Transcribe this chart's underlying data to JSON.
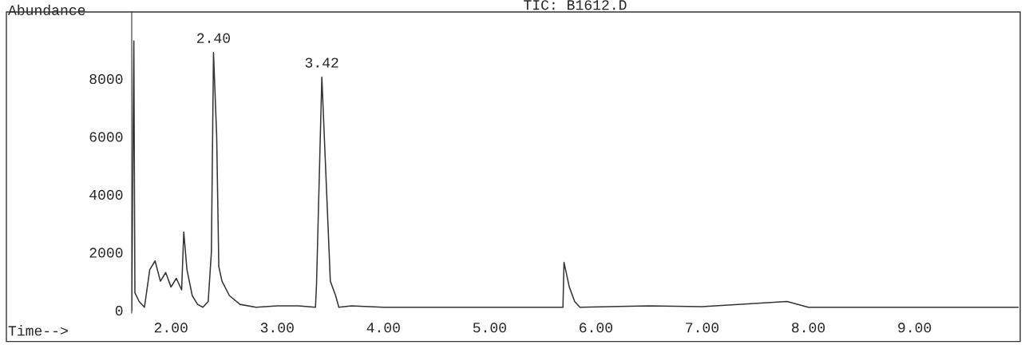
{
  "chart_data": {
    "type": "line",
    "title": "TIC: B1612.D",
    "xlabel": "Time-->",
    "ylabel": "Abundance",
    "x": [
      1.63,
      1.65,
      1.66,
      1.7,
      1.75,
      1.8,
      1.85,
      1.9,
      1.95,
      2.0,
      2.05,
      2.1,
      2.12,
      2.15,
      2.2,
      2.25,
      2.3,
      2.35,
      2.38,
      2.4,
      2.43,
      2.45,
      2.48,
      2.55,
      2.65,
      2.8,
      3.0,
      3.2,
      3.36,
      3.37,
      3.42,
      3.5,
      3.55,
      3.58,
      3.7,
      4.0,
      5.0,
      5.69,
      5.7,
      5.75,
      5.8,
      5.85,
      6.5,
      7.0,
      7.8,
      8.0,
      9.0,
      9.98
    ],
    "series": [
      {
        "color": "#333333",
        "values": [
          0,
          9300,
          600,
          300,
          100,
          1400,
          1700,
          1000,
          1300,
          800,
          1100,
          700,
          2700,
          1400,
          500,
          200,
          100,
          300,
          2000,
          8900,
          6000,
          1500,
          1000,
          500,
          200,
          100,
          150,
          150,
          100,
          900,
          8050,
          1000,
          500,
          100,
          150,
          100,
          100,
          100,
          1650,
          800,
          300,
          100,
          150,
          120,
          300,
          100,
          100,
          100
        ]
      }
    ],
    "xlim": [
      1.63,
      9.98
    ],
    "xticks": [
      {
        "value": 2,
        "label": "2.00"
      },
      {
        "value": 3,
        "label": "3.00"
      },
      {
        "value": 4,
        "label": "4.00"
      },
      {
        "value": 5,
        "label": "5.00"
      },
      {
        "value": 6,
        "label": "6.00"
      },
      {
        "value": 7,
        "label": "7.00"
      },
      {
        "value": 8,
        "label": "8.00"
      },
      {
        "value": 9,
        "label": "9.00"
      }
    ],
    "ylim": [
      -100,
      10300
    ],
    "yticks": [
      0,
      2000,
      4000,
      6000,
      8000
    ],
    "annotations": [
      {
        "text": "2.40",
        "x": 2.4,
        "y": 8900
      },
      {
        "text": "3.42",
        "x": 3.42,
        "y": 8050
      }
    ],
    "grid": false,
    "legend": false,
    "marker": "none",
    "line_style": "solid"
  }
}
